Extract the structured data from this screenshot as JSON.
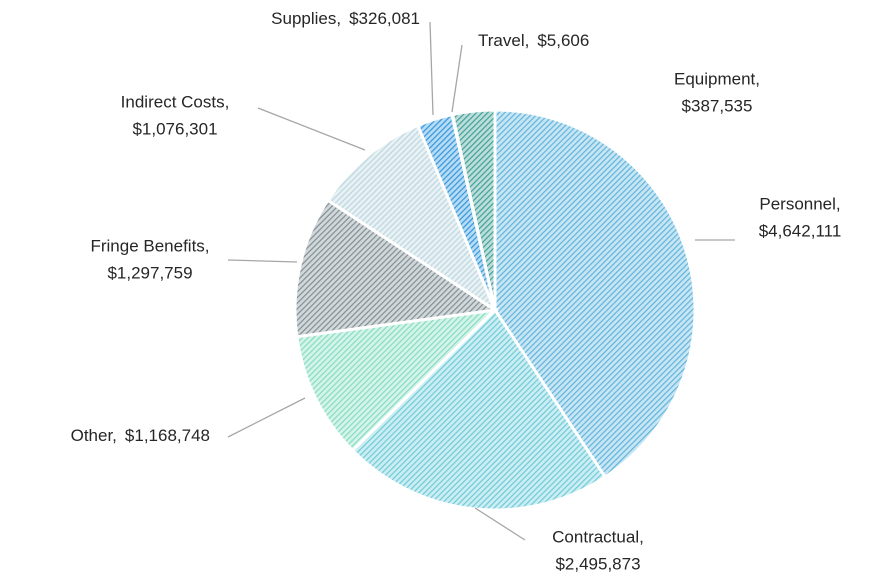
{
  "chart_data": {
    "type": "pie",
    "categories": [
      "Personnel,",
      "Contractual,",
      "Other,",
      "Fringe Benefits,",
      "Indirect Costs,",
      "Supplies,",
      "Travel,",
      "Equipment,"
    ],
    "values": [
      4642111,
      2495873,
      1168748,
      1297759,
      1076301,
      326081,
      5606,
      387535
    ],
    "value_labels": [
      "$4,642,111",
      "$2,495,873",
      "$1,168,748",
      "$1,297,759",
      "$1,076,301",
      "$326,081",
      "$5,606",
      "$387,535"
    ],
    "colors": [
      "#5fb4dc",
      "#6ccbd8",
      "#84dcc0",
      "#7f8e94",
      "#bcd6df",
      "#3096dd",
      "#2f8f88",
      "#3f9f97"
    ]
  }
}
